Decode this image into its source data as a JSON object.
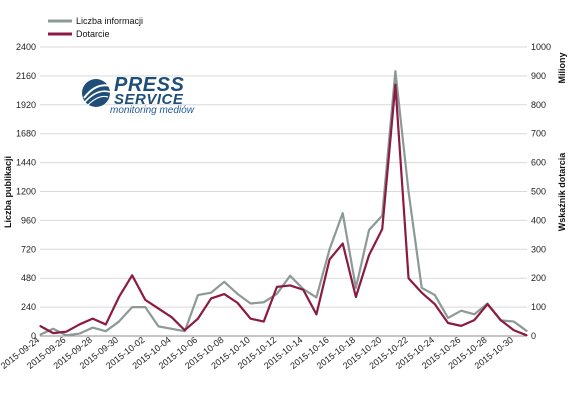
{
  "colors": {
    "grid": "#d9d9d9",
    "axis": "#8c8c8c",
    "logo_blue": "#1f4e79",
    "logo_text_blue": "#1f5a96"
  },
  "logo": {
    "line1": "PRESS",
    "line2": "SERVICE",
    "line3": "monitoring mediów",
    "icon": "globe-swoosh-icon"
  },
  "chart_data": {
    "type": "line",
    "xlabel": "",
    "ylabel": "Liczba publikacji",
    "y2label": "Wskaźnik dotarcia",
    "y2unit": "Miliony",
    "ylim": [
      0,
      2400
    ],
    "yticks": [
      0,
      240,
      480,
      720,
      960,
      1200,
      1440,
      1680,
      1920,
      2160,
      2400
    ],
    "y2lim": [
      0,
      1000
    ],
    "y2ticks": [
      0,
      100,
      200,
      300,
      400,
      500,
      600,
      700,
      800,
      900,
      1000
    ],
    "grid": true,
    "legend_position": "top-left",
    "x": [
      "2015-09-24",
      "2015-09-25",
      "2015-09-26",
      "2015-09-27",
      "2015-09-28",
      "2015-09-29",
      "2015-09-30",
      "2015-10-01",
      "2015-10-02",
      "2015-10-03",
      "2015-10-04",
      "2015-10-05",
      "2015-10-06",
      "2015-10-07",
      "2015-10-08",
      "2015-10-09",
      "2015-10-10",
      "2015-10-11",
      "2015-10-12",
      "2015-10-13",
      "2015-10-14",
      "2015-10-15",
      "2015-10-16",
      "2015-10-17",
      "2015-10-18",
      "2015-10-19",
      "2015-10-20",
      "2015-10-21",
      "2015-10-22",
      "2015-10-23",
      "2015-10-24",
      "2015-10-25",
      "2015-10-26",
      "2015-10-27",
      "2015-10-28",
      "2015-10-29",
      "2015-10-30",
      "2015-10-31"
    ],
    "x_tick_labels": [
      "2015-09-24",
      "2015-09-26",
      "2015-09-28",
      "2015-09-30",
      "2015-10-02",
      "2015-10-04",
      "2015-10-06",
      "2015-10-08",
      "2015-10-10",
      "2015-10-12",
      "2015-10-14",
      "2015-10-16",
      "2015-10-18",
      "2015-10-20",
      "2015-10-22",
      "2015-10-24",
      "2015-10-26",
      "2015-10-28",
      "2015-10-30"
    ],
    "series": [
      {
        "name": "Liczba informacji",
        "axis": "left",
        "color": "#8c9a95",
        "values": [
          10,
          60,
          5,
          20,
          70,
          40,
          120,
          240,
          240,
          80,
          60,
          40,
          340,
          360,
          450,
          350,
          270,
          280,
          350,
          500,
          390,
          320,
          720,
          1020,
          400,
          880,
          1000,
          2200,
          1200,
          400,
          340,
          150,
          210,
          180,
          270,
          130,
          120,
          40
        ]
      },
      {
        "name": "Dotarcie",
        "axis": "right",
        "color": "#8b1a44",
        "values": [
          35,
          10,
          15,
          40,
          60,
          40,
          135,
          210,
          125,
          95,
          65,
          20,
          60,
          130,
          145,
          115,
          60,
          50,
          170,
          175,
          160,
          75,
          265,
          320,
          135,
          280,
          370,
          870,
          200,
          150,
          110,
          45,
          35,
          55,
          110,
          55,
          20,
          2
        ]
      }
    ]
  }
}
